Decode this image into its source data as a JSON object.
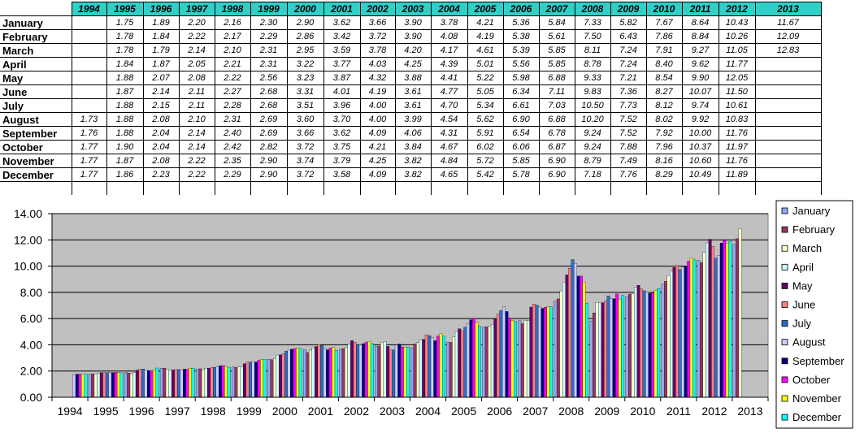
{
  "table": {
    "columns": [
      "1994",
      "1995",
      "1996",
      "1997",
      "1998",
      "1999",
      "2000",
      "2001",
      "2002",
      "2003",
      "2004",
      "2005",
      "2006",
      "2007",
      "2008",
      "2009",
      "2010",
      "2011",
      "2012",
      "2013"
    ],
    "rows": [
      {
        "label": "January",
        "values": [
          "",
          "1.75",
          "1.89",
          "2.20",
          "2.16",
          "2.30",
          "2.90",
          "3.62",
          "3.66",
          "3.90",
          "3.78",
          "4.21",
          "5.36",
          "5.84",
          "7.33",
          "5.82",
          "7.67",
          "8.64",
          "10.43",
          "11.67"
        ]
      },
      {
        "label": "February",
        "values": [
          "",
          "1.78",
          "1.84",
          "2.22",
          "2.17",
          "2.29",
          "2.86",
          "3.42",
          "3.72",
          "3.90",
          "4.08",
          "4.19",
          "5.38",
          "5.61",
          "7.50",
          "6.43",
          "7.86",
          "8.84",
          "10.26",
          "12.09"
        ]
      },
      {
        "label": "March",
        "values": [
          "",
          "1.78",
          "1.79",
          "2.14",
          "2.10",
          "2.31",
          "2.95",
          "3.59",
          "3.78",
          "4.20",
          "4.17",
          "4.61",
          "5.39",
          "5.85",
          "8.11",
          "7.24",
          "7.91",
          "9.27",
          "11.05",
          "12.83"
        ]
      },
      {
        "label": "April",
        "values": [
          "",
          "1.84",
          "1.87",
          "2.05",
          "2.21",
          "2.31",
          "3.22",
          "3.77",
          "4.03",
          "4.25",
          "4.39",
          "5.01",
          "5.56",
          "5.85",
          "8.78",
          "7.24",
          "8.40",
          "9.62",
          "11.77",
          ""
        ]
      },
      {
        "label": "May",
        "values": [
          "",
          "1.88",
          "2.07",
          "2.08",
          "2.22",
          "2.56",
          "3.23",
          "3.87",
          "4.32",
          "3.88",
          "4.41",
          "5.22",
          "5.98",
          "6.88",
          "9.33",
          "7.21",
          "8.54",
          "9.90",
          "12.05",
          ""
        ]
      },
      {
        "label": "June",
        "values": [
          "",
          "1.87",
          "2.14",
          "2.11",
          "2.27",
          "2.68",
          "3.31",
          "4.01",
          "4.19",
          "3.61",
          "4.77",
          "5.05",
          "6.34",
          "7.11",
          "9.83",
          "7.36",
          "8.27",
          "10.07",
          "11.50",
          ""
        ]
      },
      {
        "label": "July",
        "values": [
          "",
          "1.88",
          "2.15",
          "2.11",
          "2.28",
          "2.68",
          "3.51",
          "3.96",
          "4.00",
          "3.61",
          "4.70",
          "5.34",
          "6.61",
          "7.03",
          "10.50",
          "7.73",
          "8.12",
          "9.74",
          "10.61",
          ""
        ]
      },
      {
        "label": "August",
        "values": [
          "1.73",
          "1.88",
          "2.08",
          "2.10",
          "2.31",
          "2.69",
          "3.60",
          "3.70",
          "4.00",
          "3.99",
          "4.54",
          "5.62",
          "6.90",
          "6.88",
          "10.20",
          "7.52",
          "8.02",
          "9.92",
          "10.83",
          ""
        ]
      },
      {
        "label": "September",
        "values": [
          "1.76",
          "1.88",
          "2.04",
          "2.14",
          "2.40",
          "2.69",
          "3.66",
          "3.62",
          "4.09",
          "4.06",
          "4.31",
          "5.91",
          "6.54",
          "6.78",
          "9.24",
          "7.52",
          "7.92",
          "10.00",
          "11.76",
          ""
        ]
      },
      {
        "label": "October",
        "values": [
          "1.77",
          "1.90",
          "2.04",
          "2.14",
          "2.42",
          "2.82",
          "3.72",
          "3.75",
          "4.21",
          "3.84",
          "4.67",
          "6.02",
          "6.06",
          "6.87",
          "9.24",
          "7.88",
          "7.96",
          "10.37",
          "11.97",
          ""
        ]
      },
      {
        "label": "November",
        "values": [
          "1.77",
          "1.87",
          "2.08",
          "2.22",
          "2.35",
          "2.90",
          "3.74",
          "3.79",
          "4.25",
          "3.82",
          "4.84",
          "5.72",
          "5.85",
          "6.90",
          "8.79",
          "7.49",
          "8.16",
          "10.60",
          "11.76",
          ""
        ]
      },
      {
        "label": "December",
        "values": [
          "1.77",
          "1.86",
          "2.23",
          "2.22",
          "2.29",
          "2.90",
          "3.72",
          "3.58",
          "4.09",
          "3.82",
          "4.65",
          "5.42",
          "5.78",
          "6.90",
          "7.18",
          "7.76",
          "8.29",
          "10.49",
          "11.89",
          ""
        ]
      }
    ]
  },
  "chart_data": {
    "type": "bar",
    "title": "",
    "xlabel": "",
    "ylabel": "",
    "categories": [
      "1994",
      "1995",
      "1996",
      "1997",
      "1998",
      "1999",
      "2000",
      "2001",
      "2002",
      "2003",
      "2004",
      "2005",
      "2006",
      "2007",
      "2008",
      "2009",
      "2010",
      "2011",
      "2012",
      "2013"
    ],
    "ylim": [
      0,
      14
    ],
    "yticks": [
      "0.00",
      "2.00",
      "4.00",
      "6.00",
      "8.00",
      "10.00",
      "12.00",
      "14.00"
    ],
    "grid": true,
    "legend_position": "right",
    "series": [
      {
        "name": "January",
        "color": "#8fa8ef",
        "values": [
          null,
          1.75,
          1.89,
          2.2,
          2.16,
          2.3,
          2.9,
          3.62,
          3.66,
          3.9,
          3.78,
          4.21,
          5.36,
          5.84,
          7.33,
          5.82,
          7.67,
          8.64,
          10.43,
          11.67
        ]
      },
      {
        "name": "February",
        "color": "#993366",
        "values": [
          null,
          1.78,
          1.84,
          2.22,
          2.17,
          2.29,
          2.86,
          3.42,
          3.72,
          3.9,
          4.08,
          4.19,
          5.38,
          5.61,
          7.5,
          6.43,
          7.86,
          8.84,
          10.26,
          12.09
        ]
      },
      {
        "name": "March",
        "color": "#ffffcc",
        "values": [
          null,
          1.78,
          1.79,
          2.14,
          2.1,
          2.31,
          2.95,
          3.59,
          3.78,
          4.2,
          4.17,
          4.61,
          5.39,
          5.85,
          8.11,
          7.24,
          7.91,
          9.27,
          11.05,
          12.83
        ]
      },
      {
        "name": "April",
        "color": "#ccffff",
        "values": [
          null,
          1.84,
          1.87,
          2.05,
          2.21,
          2.31,
          3.22,
          3.77,
          4.03,
          4.25,
          4.39,
          5.01,
          5.56,
          5.85,
          8.78,
          7.24,
          8.4,
          9.62,
          11.77,
          null
        ]
      },
      {
        "name": "May",
        "color": "#660066",
        "values": [
          null,
          1.88,
          2.07,
          2.08,
          2.22,
          2.56,
          3.23,
          3.87,
          4.32,
          3.88,
          4.41,
          5.22,
          5.98,
          6.88,
          9.33,
          7.21,
          8.54,
          9.9,
          12.05,
          null
        ]
      },
      {
        "name": "June",
        "color": "#ff8080",
        "values": [
          null,
          1.87,
          2.14,
          2.11,
          2.27,
          2.68,
          3.31,
          4.01,
          4.19,
          3.61,
          4.77,
          5.05,
          6.34,
          7.11,
          9.83,
          7.36,
          8.27,
          10.07,
          11.5,
          null
        ]
      },
      {
        "name": "July",
        "color": "#2a6fc9",
        "values": [
          null,
          1.88,
          2.15,
          2.11,
          2.28,
          2.68,
          3.51,
          3.96,
          4.0,
          3.61,
          4.7,
          5.34,
          6.61,
          7.03,
          10.5,
          7.73,
          8.12,
          9.74,
          10.61,
          null
        ]
      },
      {
        "name": "August",
        "color": "#ccccff",
        "values": [
          1.73,
          1.88,
          2.08,
          2.1,
          2.31,
          2.69,
          3.6,
          3.7,
          4.0,
          3.99,
          4.54,
          5.62,
          6.9,
          6.88,
          10.2,
          7.52,
          8.02,
          9.92,
          10.83,
          null
        ]
      },
      {
        "name": "September",
        "color": "#000080",
        "values": [
          1.76,
          1.88,
          2.04,
          2.14,
          2.4,
          2.69,
          3.66,
          3.62,
          4.09,
          4.06,
          4.31,
          5.91,
          6.54,
          6.78,
          9.24,
          7.52,
          7.92,
          10.0,
          11.76,
          null
        ]
      },
      {
        "name": "October",
        "color": "#ff00ff",
        "values": [
          1.77,
          1.9,
          2.04,
          2.14,
          2.42,
          2.82,
          3.72,
          3.75,
          4.21,
          3.84,
          4.67,
          6.02,
          6.06,
          6.87,
          9.24,
          7.88,
          7.96,
          10.37,
          11.97,
          null
        ]
      },
      {
        "name": "November",
        "color": "#ffff00",
        "values": [
          1.77,
          1.87,
          2.08,
          2.22,
          2.35,
          2.9,
          3.74,
          3.79,
          4.25,
          3.82,
          4.84,
          5.72,
          5.85,
          6.9,
          8.79,
          7.49,
          8.16,
          10.6,
          11.76,
          null
        ]
      },
      {
        "name": "December",
        "color": "#00ffff",
        "values": [
          1.77,
          1.86,
          2.23,
          2.22,
          2.29,
          2.9,
          3.72,
          3.58,
          4.09,
          3.82,
          4.65,
          5.42,
          5.78,
          6.9,
          7.18,
          7.76,
          8.29,
          10.49,
          11.89,
          null
        ]
      }
    ],
    "plot_background": "#c0c0c0"
  }
}
